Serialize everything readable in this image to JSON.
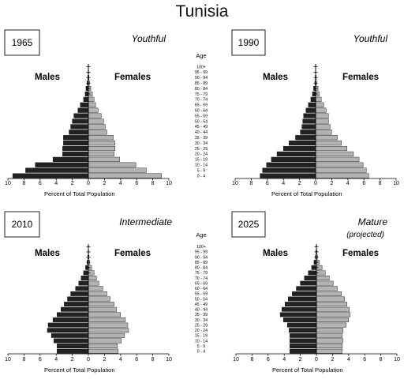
{
  "page": {
    "title": "Tunisia"
  },
  "chart_data": [
    {
      "type": "bar",
      "year": "1965",
      "stage": "Youthful",
      "subtitle": "",
      "male_label": "Males",
      "female_label": "Females",
      "age_title": "Age",
      "xlabel": "Percent of Total Population",
      "xticks": [
        "10",
        "8",
        "6",
        "4",
        "2",
        "0",
        "2",
        "4",
        "6",
        "8",
        "10"
      ],
      "xlim": [
        -10,
        10
      ],
      "categories": [
        "0 - 4",
        "5 - 9",
        "10 - 14",
        "15 - 19",
        "20 - 24",
        "25 - 29",
        "30 - 34",
        "35 - 39",
        "40 - 44",
        "45 - 49",
        "50 - 54",
        "55 - 59",
        "60 - 64",
        "65 - 69",
        "70 - 74",
        "75 - 79",
        "80 - 84",
        "85 - 89",
        "90 - 94",
        "95 - 99",
        "100+"
      ],
      "series": [
        {
          "name": "Males",
          "values": [
            9.4,
            7.8,
            6.6,
            4.4,
            3.2,
            3.2,
            3.1,
            3.1,
            2.4,
            2.2,
            2.0,
            1.8,
            1.3,
            1.0,
            0.6,
            0.4,
            0.3,
            0.15,
            0.08,
            0.04,
            0.02
          ]
        },
        {
          "name": "Females",
          "values": [
            9.1,
            7.2,
            5.9,
            3.9,
            3.2,
            3.3,
            3.3,
            3.1,
            2.3,
            2.1,
            1.9,
            1.6,
            1.2,
            0.9,
            0.7,
            0.5,
            0.3,
            0.15,
            0.08,
            0.04,
            0.02
          ]
        }
      ]
    },
    {
      "type": "bar",
      "year": "1990",
      "stage": "Youthful",
      "subtitle": "",
      "male_label": "Males",
      "female_label": "Females",
      "age_title": "",
      "xlabel": "Percent of Total Population",
      "xticks": [
        "10",
        "8",
        "6",
        "4",
        "2",
        "0",
        "2",
        "4",
        "6",
        "8",
        "10"
      ],
      "xlim": [
        -10,
        10
      ],
      "categories": [
        "0 - 4",
        "5 - 9",
        "10 - 14",
        "15 - 19",
        "20 - 24",
        "25 - 29",
        "30 - 34",
        "35 - 39",
        "40 - 44",
        "45 - 49",
        "50 - 54",
        "55 - 59",
        "60 - 64",
        "65 - 69",
        "70 - 74",
        "75 - 79",
        "80 - 84",
        "85 - 89",
        "90 - 94",
        "95 - 99",
        "100+"
      ],
      "series": [
        {
          "name": "Males",
          "values": [
            6.9,
            6.6,
            6.1,
            5.5,
            4.8,
            4.0,
            3.3,
            2.5,
            1.9,
            1.7,
            1.6,
            1.5,
            1.2,
            0.9,
            0.6,
            0.4,
            0.25,
            0.1,
            0.05,
            0.03,
            0.02
          ]
        },
        {
          "name": "Females",
          "values": [
            6.6,
            6.3,
            5.9,
            5.4,
            4.7,
            3.9,
            3.2,
            2.7,
            2.0,
            1.8,
            1.6,
            1.6,
            1.3,
            1.0,
            0.7,
            0.45,
            0.3,
            0.12,
            0.06,
            0.03,
            0.02
          ]
        }
      ]
    },
    {
      "type": "bar",
      "year": "2010",
      "stage": "Intermediate",
      "subtitle": "",
      "male_label": "Males",
      "female_label": "Females",
      "age_title": "Age",
      "xlabel": "Percent of Total Population",
      "xticks": [
        "10",
        "8",
        "6",
        "4",
        "2",
        "0",
        "2",
        "4",
        "6",
        "8",
        "10"
      ],
      "xlim": [
        -10,
        10
      ],
      "categories": [
        "0 - 4",
        "5 - 9",
        "10 - 14",
        "15 - 19",
        "20 - 24",
        "25 - 29",
        "30 - 34",
        "35 - 39",
        "40 - 44",
        "45 - 49",
        "50 - 54",
        "55 - 59",
        "60 - 64",
        "65 - 69",
        "70 - 74",
        "75 - 79",
        "80 - 84",
        "85 - 89",
        "90 - 94",
        "95 - 99",
        "100+"
      ],
      "series": [
        {
          "name": "Males",
          "values": [
            3.9,
            3.9,
            4.3,
            4.6,
            5.1,
            5.0,
            4.4,
            3.9,
            3.4,
            3.0,
            2.6,
            2.2,
            1.6,
            1.2,
            0.9,
            0.6,
            0.35,
            0.15,
            0.07,
            0.03,
            0.02
          ]
        },
        {
          "name": "Females",
          "values": [
            3.7,
            3.6,
            4.1,
            4.5,
            5.0,
            4.9,
            4.6,
            4.0,
            3.5,
            3.2,
            2.7,
            2.3,
            1.8,
            1.3,
            1.0,
            0.7,
            0.4,
            0.18,
            0.08,
            0.04,
            0.02
          ]
        }
      ]
    },
    {
      "type": "bar",
      "year": "2025",
      "stage": "Mature",
      "subtitle": "(projected)",
      "male_label": "Males",
      "female_label": "Females",
      "age_title": "",
      "xlabel": "Percent of Total Population",
      "xticks": [
        "10",
        "8",
        "6",
        "4",
        "2",
        "0",
        "2",
        "4",
        "6",
        "8",
        "10"
      ],
      "xlim": [
        -10,
        10
      ],
      "categories": [
        "0 - 4",
        "5 - 9",
        "10 - 14",
        "15 - 19",
        "20 - 24",
        "25 - 29",
        "30 - 34",
        "35 - 39",
        "40 - 44",
        "45 - 49",
        "50 - 54",
        "55 - 59",
        "60 - 64",
        "65 - 69",
        "70 - 74",
        "75 - 79",
        "80 - 84",
        "85 - 89",
        "90 - 94",
        "95 - 99",
        "100+"
      ],
      "series": [
        {
          "name": "Males",
          "values": [
            3.3,
            3.3,
            3.3,
            3.3,
            3.4,
            3.6,
            4.1,
            4.5,
            4.3,
            3.9,
            3.5,
            3.0,
            2.5,
            2.0,
            1.5,
            1.0,
            0.6,
            0.3,
            0.12,
            0.05,
            0.02
          ]
        },
        {
          "name": "Females",
          "values": [
            3.2,
            3.2,
            3.3,
            3.2,
            3.3,
            3.7,
            4.0,
            4.2,
            4.1,
            3.8,
            3.5,
            3.1,
            2.6,
            2.1,
            1.6,
            1.1,
            0.7,
            0.35,
            0.15,
            0.06,
            0.03
          ]
        }
      ]
    }
  ],
  "colors": {
    "male": "#222222",
    "female": "#b3b3b3",
    "axis": "#000000"
  }
}
